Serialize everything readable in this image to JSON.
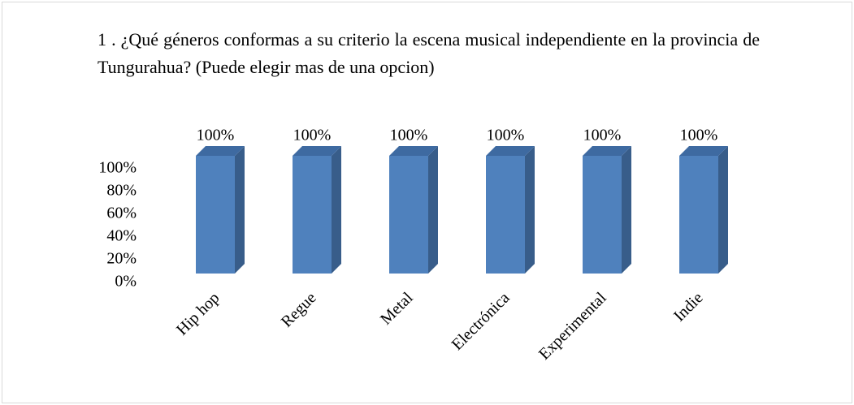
{
  "chart_data": {
    "type": "bar3d",
    "title": "1 . ¿Qué géneros conformas a su criterio la escena musical independiente en la provincia de Tungurahua? (Puede elegir mas de una opcion)",
    "categories": [
      "Hip hop",
      "Regue",
      "Metal",
      "Electrónica",
      "Experimental",
      "Indie"
    ],
    "values": [
      100,
      100,
      100,
      100,
      100,
      100
    ],
    "value_labels": [
      "100%",
      "100%",
      "100%",
      "100%",
      "100%",
      "100%"
    ],
    "color": "#4f81bd",
    "ylim": [
      0,
      100
    ],
    "yticks": [
      {
        "value": 0,
        "label": "0%"
      },
      {
        "value": 20,
        "label": "20%"
      },
      {
        "value": 40,
        "label": "40%"
      },
      {
        "value": 60,
        "label": "60%"
      },
      {
        "value": 80,
        "label": "80%"
      },
      {
        "value": 100,
        "label": "100%"
      }
    ],
    "grid": false
  }
}
